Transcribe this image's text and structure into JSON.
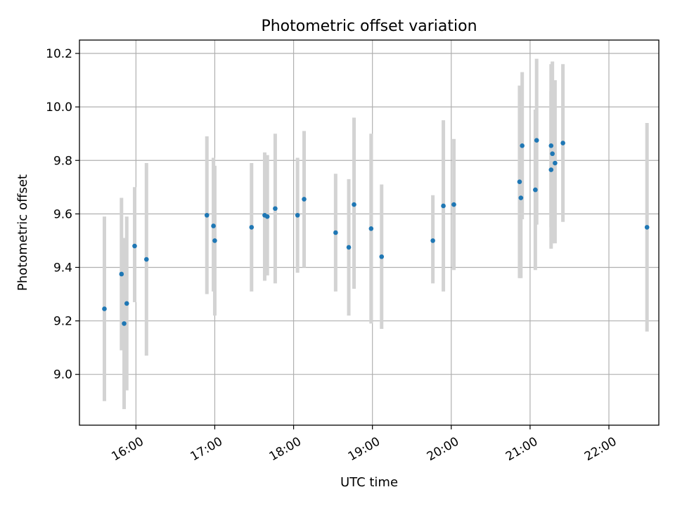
{
  "chart_data": {
    "type": "scatter",
    "title": "Photometric offset variation",
    "xlabel": "UTC time",
    "ylabel": "Photometric offset",
    "x_unit": "UTC time (HH:MM)",
    "xlim": [
      "15:17",
      "22:38"
    ],
    "ylim": [
      8.81,
      10.25
    ],
    "x_ticks": [
      "16:00",
      "17:00",
      "18:00",
      "19:00",
      "20:00",
      "21:00",
      "22:00"
    ],
    "y_ticks": [
      "9.0",
      "9.2",
      "9.4",
      "9.6",
      "9.8",
      "10.0",
      "10.2"
    ],
    "grid": true,
    "colors": {
      "marker": "#1f77b4",
      "errorbar": "#d3d3d3"
    },
    "points": [
      {
        "x": "15:36",
        "y": 9.245,
        "ylo": 8.9,
        "yhi": 9.59
      },
      {
        "x": "15:49",
        "y": 9.375,
        "ylo": 9.09,
        "yhi": 9.66
      },
      {
        "x": "15:51",
        "y": 9.19,
        "ylo": 8.87,
        "yhi": 9.51
      },
      {
        "x": "15:53",
        "y": 9.265,
        "ylo": 8.94,
        "yhi": 9.59
      },
      {
        "x": "15:59",
        "y": 9.48,
        "ylo": 9.27,
        "yhi": 9.7
      },
      {
        "x": "16:08",
        "y": 9.43,
        "ylo": 9.07,
        "yhi": 9.79
      },
      {
        "x": "16:54",
        "y": 9.595,
        "ylo": 9.3,
        "yhi": 9.89
      },
      {
        "x": "16:59",
        "y": 9.555,
        "ylo": 9.31,
        "yhi": 9.81
      },
      {
        "x": "17:00",
        "y": 9.5,
        "ylo": 9.22,
        "yhi": 9.78
      },
      {
        "x": "17:28",
        "y": 9.55,
        "ylo": 9.31,
        "yhi": 9.79
      },
      {
        "x": "17:38",
        "y": 9.595,
        "ylo": 9.35,
        "yhi": 9.83
      },
      {
        "x": "17:40",
        "y": 9.59,
        "ylo": 9.37,
        "yhi": 9.82
      },
      {
        "x": "17:46",
        "y": 9.62,
        "ylo": 9.34,
        "yhi": 9.9
      },
      {
        "x": "18:03",
        "y": 9.595,
        "ylo": 9.38,
        "yhi": 9.81
      },
      {
        "x": "18:08",
        "y": 9.655,
        "ylo": 9.4,
        "yhi": 9.91
      },
      {
        "x": "18:32",
        "y": 9.53,
        "ylo": 9.31,
        "yhi": 9.75
      },
      {
        "x": "18:42",
        "y": 9.475,
        "ylo": 9.22,
        "yhi": 9.73
      },
      {
        "x": "18:46",
        "y": 9.635,
        "ylo": 9.32,
        "yhi": 9.96
      },
      {
        "x": "18:59",
        "y": 9.545,
        "ylo": 9.19,
        "yhi": 9.9
      },
      {
        "x": "19:07",
        "y": 9.44,
        "ylo": 9.17,
        "yhi": 9.71
      },
      {
        "x": "19:46",
        "y": 9.5,
        "ylo": 9.34,
        "yhi": 9.67
      },
      {
        "x": "19:54",
        "y": 9.63,
        "ylo": 9.31,
        "yhi": 9.95
      },
      {
        "x": "20:02",
        "y": 9.635,
        "ylo": 9.39,
        "yhi": 9.88
      },
      {
        "x": "20:52",
        "y": 9.72,
        "ylo": 9.36,
        "yhi": 10.08
      },
      {
        "x": "20:53",
        "y": 9.66,
        "ylo": 9.36,
        "yhi": 9.96
      },
      {
        "x": "20:54",
        "y": 9.855,
        "ylo": 9.58,
        "yhi": 10.13
      },
      {
        "x": "21:04",
        "y": 9.69,
        "ylo": 9.39,
        "yhi": 9.99
      },
      {
        "x": "21:05",
        "y": 9.875,
        "ylo": 9.56,
        "yhi": 10.18
      },
      {
        "x": "21:16",
        "y": 9.765,
        "ylo": 9.47,
        "yhi": 10.06
      },
      {
        "x": "21:16",
        "y": 9.855,
        "ylo": 9.55,
        "yhi": 10.16
      },
      {
        "x": "21:17",
        "y": 9.825,
        "ylo": 9.49,
        "yhi": 10.17
      },
      {
        "x": "21:19",
        "y": 9.79,
        "ylo": 9.49,
        "yhi": 10.1
      },
      {
        "x": "21:25",
        "y": 9.865,
        "ylo": 9.57,
        "yhi": 10.16
      },
      {
        "x": "22:29",
        "y": 9.55,
        "ylo": 9.16,
        "yhi": 9.94
      }
    ]
  }
}
